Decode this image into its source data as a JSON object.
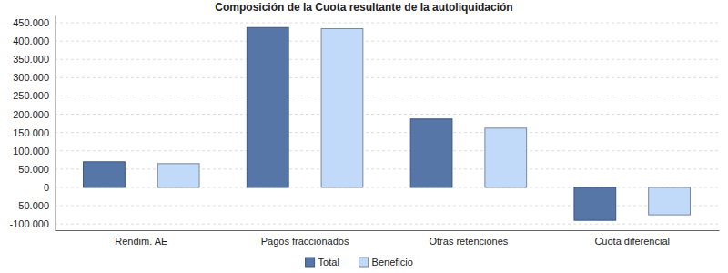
{
  "chart_data": {
    "type": "bar",
    "title": "Composición de la Cuota resultante de la autoliquidación",
    "categories": [
      "Rendim. AE",
      "Pagos fraccionados",
      "Otras retenciones",
      "Cuota diferencial"
    ],
    "series": [
      {
        "name": "Total",
        "color": "#5676a8",
        "values": [
          70000,
          437000,
          187000,
          -90000
        ]
      },
      {
        "name": "Beneficio",
        "color": "#c2dafa",
        "values": [
          65000,
          434000,
          162000,
          -75000
        ]
      }
    ],
    "ylim": [
      -117000,
      470000
    ],
    "yticks": [
      {
        "value": -100000,
        "label": "-100.000"
      },
      {
        "value": -50000,
        "label": "-50.000"
      },
      0,
      {
        "value": 50000,
        "label": "50.000"
      },
      {
        "value": 100000,
        "label": "100.000"
      },
      {
        "value": 150000,
        "label": "150.000"
      },
      {
        "value": 200000,
        "label": "200.000"
      },
      {
        "value": 250000,
        "label": "250.000"
      },
      {
        "value": 300000,
        "label": "300.000"
      },
      {
        "value": 350000,
        "label": "350.000"
      },
      {
        "value": 400000,
        "label": "400.000"
      },
      {
        "value": 450000,
        "label": "450.000"
      }
    ],
    "grid": true,
    "legend": "bottom"
  }
}
